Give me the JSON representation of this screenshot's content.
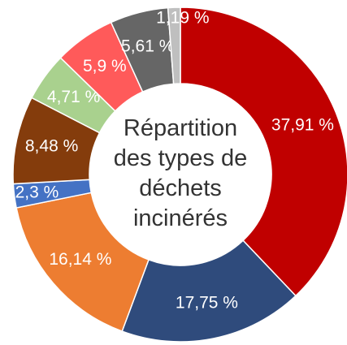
{
  "chart_data": {
    "type": "donut",
    "title": "Répartition des types de déchets incinérés",
    "categories": [
      null,
      null,
      null,
      null,
      null,
      null,
      null,
      null,
      null
    ],
    "values": [
      37.91,
      17.75,
      16.14,
      2.3,
      8.48,
      4.71,
      5.9,
      5.61,
      1.19
    ],
    "value_labels": [
      "37,91 %",
      "17,75 %",
      "16,14 %",
      "2,3 %",
      "8,48 %",
      "4,71 %",
      "5,9 %",
      "5,61 %",
      "1,19 %"
    ],
    "colors": [
      "#c00000",
      "#2f4b7c",
      "#ed7d31",
      "#4472c4",
      "#843c0c",
      "#a9d18e",
      "#ff5a5a",
      "#666666",
      "#bfbfbf"
    ]
  }
}
